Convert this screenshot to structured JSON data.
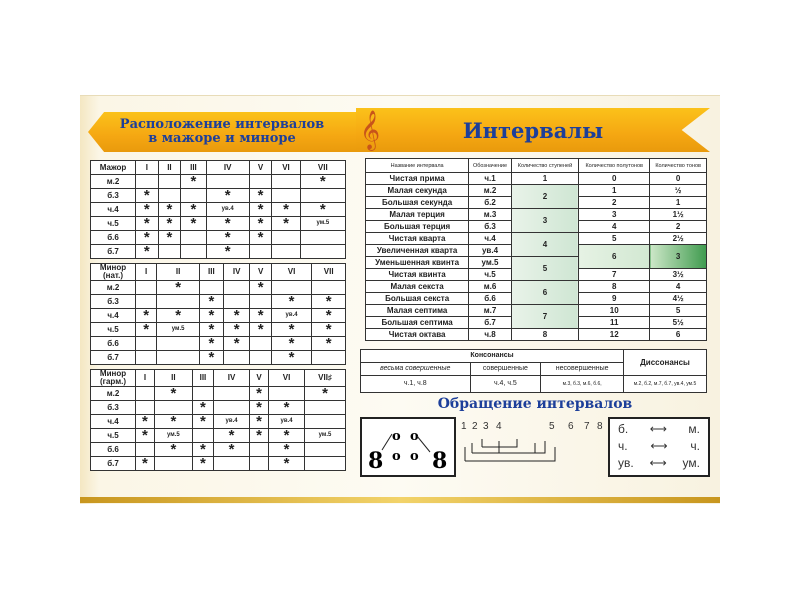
{
  "left_banner": {
    "line1": "Расположение интервалов",
    "line2": "в мажоре и миноре"
  },
  "right_banner": {
    "title": "Интервалы",
    "clef_icon": "treble-clef-icon"
  },
  "major": {
    "header": [
      "Мажор",
      "I",
      "II",
      "III",
      "IV",
      "V",
      "VI",
      "VII"
    ],
    "rows": [
      [
        "м.2",
        "",
        "",
        "*",
        "",
        "",
        "",
        "*"
      ],
      [
        "б.3",
        "*",
        "",
        "",
        "*",
        "*",
        "",
        ""
      ],
      [
        "ч.4",
        "*",
        "*",
        "*",
        "ув.4",
        "*",
        "*",
        "*"
      ],
      [
        "ч.5",
        "*",
        "*",
        "*",
        "*",
        "*",
        "*",
        "ум.5"
      ],
      [
        "б.6",
        "*",
        "*",
        "",
        "*",
        "*",
        "",
        ""
      ],
      [
        "б.7",
        "*",
        "",
        "",
        "*",
        "",
        "",
        ""
      ]
    ]
  },
  "minor_nat": {
    "header": [
      "Минор (нат.)",
      "I",
      "II",
      "III",
      "IV",
      "V",
      "VI",
      "VII"
    ],
    "rows": [
      [
        "м.2",
        "",
        "*",
        "",
        "",
        "*",
        "",
        ""
      ],
      [
        "б.3",
        "",
        "",
        "*",
        "",
        "",
        "*",
        "*"
      ],
      [
        "ч.4",
        "*",
        "*",
        "*",
        "*",
        "*",
        "ув.4",
        "*"
      ],
      [
        "ч.5",
        "*",
        "ум.5",
        "*",
        "*",
        "*",
        "*",
        "*"
      ],
      [
        "б.6",
        "",
        "",
        "*",
        "*",
        "",
        "*",
        "*"
      ],
      [
        "б.7",
        "",
        "",
        "*",
        "",
        "",
        "*",
        ""
      ]
    ]
  },
  "minor_harm": {
    "header": [
      "Минор (гарм.)",
      "I",
      "II",
      "III",
      "IV",
      "V",
      "VI",
      "VII♯"
    ],
    "rows": [
      [
        "м.2",
        "",
        "*",
        "",
        "",
        "*",
        "",
        "*"
      ],
      [
        "б.3",
        "",
        "",
        "*",
        "",
        "*",
        "*",
        ""
      ],
      [
        "ч.4",
        "*",
        "*",
        "*",
        "ув.4",
        "*",
        "ув.4",
        ""
      ],
      [
        "ч.5",
        "*",
        "ум.5",
        "",
        "*",
        "*",
        "*",
        "ум.5"
      ],
      [
        "б.6",
        "",
        "*",
        "*",
        "*",
        "",
        "*",
        ""
      ],
      [
        "б.7",
        "*",
        "",
        "*",
        "",
        "",
        "*",
        ""
      ]
    ]
  },
  "intervals": {
    "header": [
      "Название интервала",
      "Обозначение",
      "Количество ступеней",
      "Количество полутонов",
      "Количество тонов"
    ],
    "rows": [
      {
        "name": "Чистая прима",
        "sym": "ч.1",
        "semi": "0",
        "tones": "0"
      },
      {
        "name": "Малая секунда",
        "sym": "м.2",
        "semi": "1",
        "tones": "½"
      },
      {
        "name": "Большая секунда",
        "sym": "б.2",
        "semi": "2",
        "tones": "1"
      },
      {
        "name": "Малая терция",
        "sym": "м.3",
        "semi": "3",
        "tones": "1½"
      },
      {
        "name": "Большая терция",
        "sym": "б.3",
        "semi": "4",
        "tones": "2"
      },
      {
        "name": "Чистая кварта",
        "sym": "ч.4",
        "semi": "5",
        "tones": "2½"
      },
      {
        "name": "Увеличенная кварта",
        "sym": "ув.4",
        "semi": "6",
        "tones": "3"
      },
      {
        "name": "Уменьшенная квинта",
        "sym": "ум.5"
      },
      {
        "name": "Чистая квинта",
        "sym": "ч.5",
        "semi": "7",
        "tones": "3½"
      },
      {
        "name": "Малая секста",
        "sym": "м.6",
        "semi": "8",
        "tones": "4"
      },
      {
        "name": "Большая секста",
        "sym": "б.6",
        "semi": "9",
        "tones": "4½"
      },
      {
        "name": "Малая септима",
        "sym": "м.7",
        "semi": "10",
        "tones": "5"
      },
      {
        "name": "Большая септима",
        "sym": "б.7",
        "semi": "11",
        "tones": "5½"
      },
      {
        "name": "Чистая октава",
        "sym": "ч.8",
        "semi": "12",
        "tones": "6"
      }
    ],
    "steps": [
      {
        "v": "1",
        "span": 1
      },
      {
        "v": "2",
        "span": 2
      },
      {
        "v": "3",
        "span": 2
      },
      {
        "v": "4",
        "span": 2
      },
      {
        "v": "5",
        "span": 2
      },
      {
        "v": "6",
        "span": 2
      },
      {
        "v": "7",
        "span": 2
      },
      {
        "v": "8",
        "span": 1
      }
    ],
    "highlight_color": "#3f9b4e"
  },
  "consonance": {
    "consonances": "Консонансы",
    "dissonances": "Диссонансы",
    "very_perfect": "весьма совершенные",
    "perfect": "совершенные",
    "imperfect": "несовершенные",
    "very_perfect_vals": "ч.1, ч.8",
    "perfect_vals": "ч.4, ч.5",
    "imperfect_vals": "м.3, б.3,     м.6, б.6,",
    "dissonant_vals": "м.2, б.2,  м.7, б.7, ув.4, ум.5"
  },
  "inversion": {
    "title": "Обращение интервалов",
    "numbers": [
      "1",
      "2",
      "3",
      "4",
      "5",
      "6",
      "7",
      "8"
    ],
    "pairs": [
      [
        "б.",
        "м."
      ],
      [
        "ч.",
        "ч."
      ],
      [
        "ув.",
        "ум."
      ]
    ]
  }
}
